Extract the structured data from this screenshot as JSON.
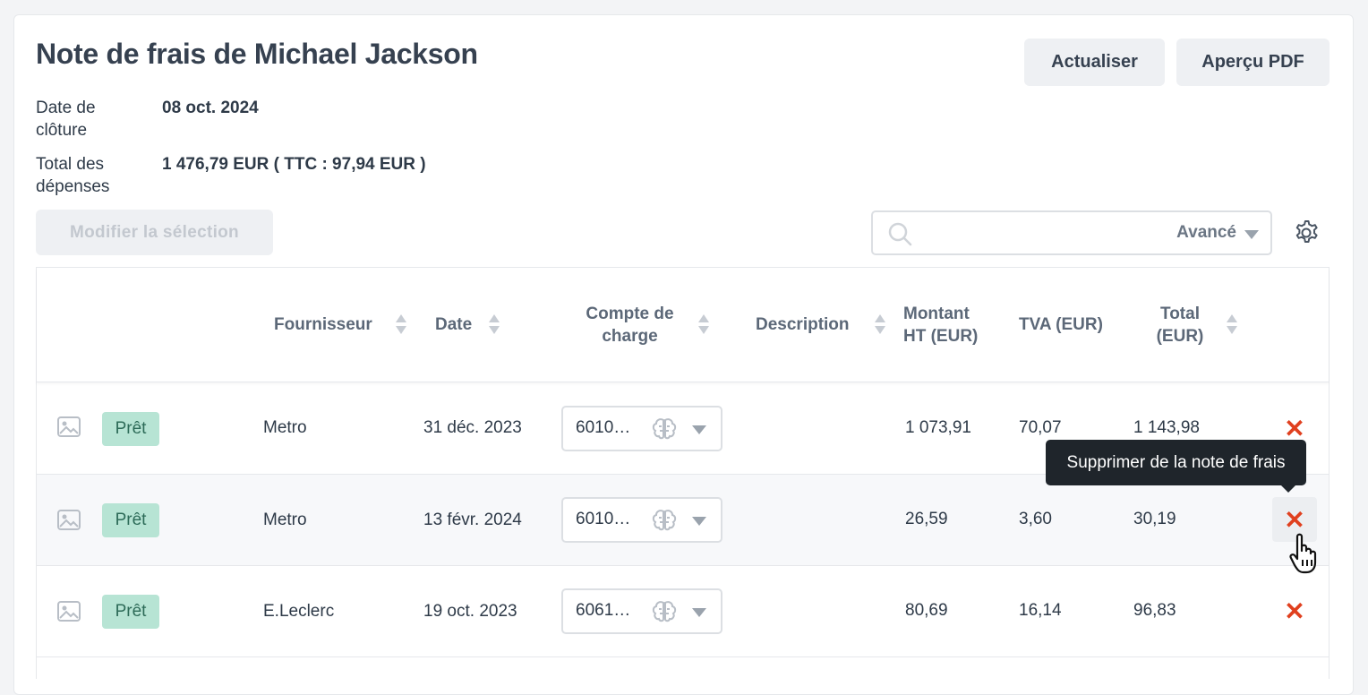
{
  "header": {
    "title": "Note de frais de Michael Jackson",
    "refresh_label": "Actualiser",
    "pdf_label": "Aperçu PDF"
  },
  "meta": {
    "closing_label": "Date de clôture",
    "closing_value": "08 oct. 2024",
    "total_label": "Total des dépenses",
    "total_value": "1 476,79 EUR ( TTC : 97,94 EUR )"
  },
  "toolbar": {
    "modify_label": "Modifier la sélection",
    "search_placeholder": "",
    "advanced_label": "Avancé"
  },
  "columns": {
    "supplier": "Fournisseur",
    "date": "Date",
    "account": "Compte de charge",
    "description": "Description",
    "amount_ht": "Montant HT (EUR)",
    "tva": "TVA (EUR)",
    "total": "Total (EUR)"
  },
  "rows": [
    {
      "status": "Prêt",
      "supplier": "Metro",
      "date": "31 déc. 2023",
      "account": "6010…",
      "description": "",
      "amount_ht": "1 073,91",
      "tva": "70,07",
      "total": "1 143,98"
    },
    {
      "status": "Prêt",
      "supplier": "Metro",
      "date": "13 févr. 2024",
      "account": "6010…",
      "description": "",
      "amount_ht": "26,59",
      "tva": "3,60",
      "total": "30,19"
    },
    {
      "status": "Prêt",
      "supplier": "E.Leclerc",
      "date": "19 oct. 2023",
      "account": "6061…",
      "description": "",
      "amount_ht": "80,69",
      "tva": "16,14",
      "total": "96,83"
    }
  ],
  "tooltip": {
    "text": "Supprimer de la note de frais"
  },
  "icons": {
    "delete": "✕",
    "delete_color": "#e0401f",
    "status_color": "#b7e4d4"
  }
}
